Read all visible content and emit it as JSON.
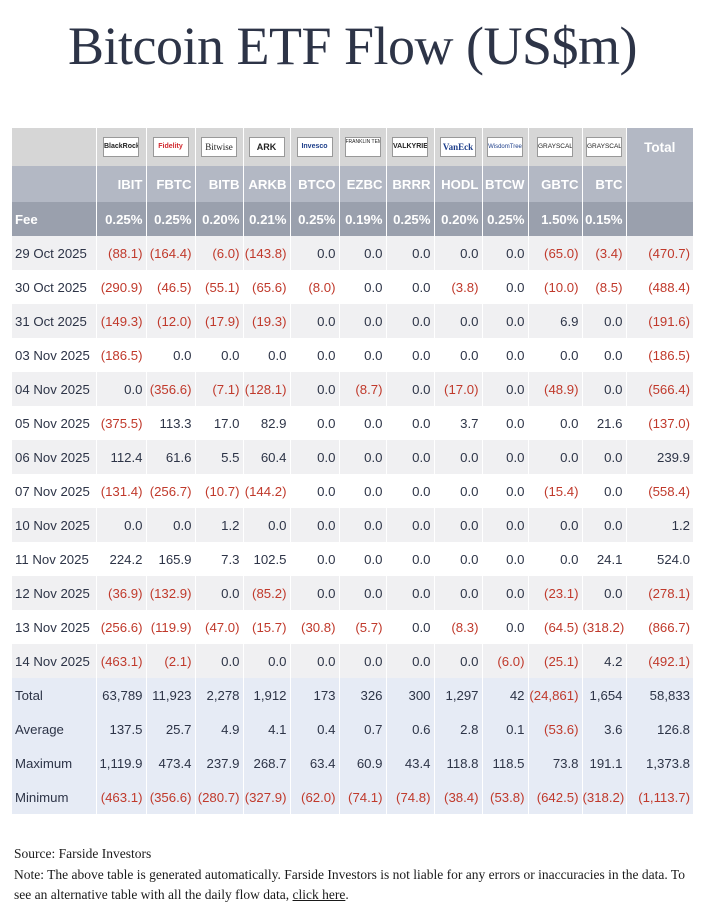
{
  "title": "Bitcoin ETF Flow (US$m)",
  "table": {
    "logos": [
      "BlackRock",
      "Fidelity",
      "Bitwise",
      "ARK",
      "Invesco",
      "FRANKLIN TEMPLETON",
      "VALKYRIE",
      "VanEck",
      "WisdomTree",
      "GRAYSCALE",
      "GRAYSCALE"
    ],
    "total_header": "Total",
    "tickers": [
      "IBIT",
      "FBTC",
      "BITB",
      "ARKB",
      "BTCO",
      "EZBC",
      "BRRR",
      "HODL",
      "BTCW",
      "GBTC",
      "BTC"
    ],
    "fee_label": "Fee",
    "fees": [
      "0.25%",
      "0.25%",
      "0.20%",
      "0.21%",
      "0.25%",
      "0.19%",
      "0.25%",
      "0.20%",
      "0.25%",
      "1.50%",
      "0.15%"
    ],
    "rows": [
      {
        "date": "29 Oct 2025",
        "values": [
          "(88.1)",
          "(164.4)",
          "(6.0)",
          "(143.8)",
          "0.0",
          "0.0",
          "0.0",
          "0.0",
          "0.0",
          "(65.0)",
          "(3.4)",
          "(470.7)"
        ]
      },
      {
        "date": "30 Oct 2025",
        "values": [
          "(290.9)",
          "(46.5)",
          "(55.1)",
          "(65.6)",
          "(8.0)",
          "0.0",
          "0.0",
          "(3.8)",
          "0.0",
          "(10.0)",
          "(8.5)",
          "(488.4)"
        ]
      },
      {
        "date": "31 Oct 2025",
        "values": [
          "(149.3)",
          "(12.0)",
          "(17.9)",
          "(19.3)",
          "0.0",
          "0.0",
          "0.0",
          "0.0",
          "0.0",
          "6.9",
          "0.0",
          "(191.6)"
        ]
      },
      {
        "date": "03 Nov 2025",
        "values": [
          "(186.5)",
          "0.0",
          "0.0",
          "0.0",
          "0.0",
          "0.0",
          "0.0",
          "0.0",
          "0.0",
          "0.0",
          "0.0",
          "(186.5)"
        ]
      },
      {
        "date": "04 Nov 2025",
        "values": [
          "0.0",
          "(356.6)",
          "(7.1)",
          "(128.1)",
          "0.0",
          "(8.7)",
          "0.0",
          "(17.0)",
          "0.0",
          "(48.9)",
          "0.0",
          "(566.4)"
        ]
      },
      {
        "date": "05 Nov 2025",
        "values": [
          "(375.5)",
          "113.3",
          "17.0",
          "82.9",
          "0.0",
          "0.0",
          "0.0",
          "3.7",
          "0.0",
          "0.0",
          "21.6",
          "(137.0)"
        ]
      },
      {
        "date": "06 Nov 2025",
        "values": [
          "112.4",
          "61.6",
          "5.5",
          "60.4",
          "0.0",
          "0.0",
          "0.0",
          "0.0",
          "0.0",
          "0.0",
          "0.0",
          "239.9"
        ]
      },
      {
        "date": "07 Nov 2025",
        "values": [
          "(131.4)",
          "(256.7)",
          "(10.7)",
          "(144.2)",
          "0.0",
          "0.0",
          "0.0",
          "0.0",
          "0.0",
          "(15.4)",
          "0.0",
          "(558.4)"
        ]
      },
      {
        "date": "10 Nov 2025",
        "values": [
          "0.0",
          "0.0",
          "1.2",
          "0.0",
          "0.0",
          "0.0",
          "0.0",
          "0.0",
          "0.0",
          "0.0",
          "0.0",
          "1.2"
        ]
      },
      {
        "date": "11 Nov 2025",
        "values": [
          "224.2",
          "165.9",
          "7.3",
          "102.5",
          "0.0",
          "0.0",
          "0.0",
          "0.0",
          "0.0",
          "0.0",
          "24.1",
          "524.0"
        ]
      },
      {
        "date": "12 Nov 2025",
        "values": [
          "(36.9)",
          "(132.9)",
          "0.0",
          "(85.2)",
          "0.0",
          "0.0",
          "0.0",
          "0.0",
          "0.0",
          "(23.1)",
          "0.0",
          "(278.1)"
        ]
      },
      {
        "date": "13 Nov 2025",
        "values": [
          "(256.6)",
          "(119.9)",
          "(47.0)",
          "(15.7)",
          "(30.8)",
          "(5.7)",
          "0.0",
          "(8.3)",
          "0.0",
          "(64.5)",
          "(318.2)",
          "(866.7)"
        ]
      },
      {
        "date": "14 Nov 2025",
        "values": [
          "(463.1)",
          "(2.1)",
          "0.0",
          "0.0",
          "0.0",
          "0.0",
          "0.0",
          "0.0",
          "(6.0)",
          "(25.1)",
          "4.2",
          "(492.1)"
        ]
      }
    ],
    "summary": [
      {
        "label": "Total",
        "values": [
          "63,789",
          "11,923",
          "2,278",
          "1,912",
          "173",
          "326",
          "300",
          "1,297",
          "42",
          "(24,861)",
          "1,654",
          "58,833"
        ]
      },
      {
        "label": "Average",
        "values": [
          "137.5",
          "25.7",
          "4.9",
          "4.1",
          "0.4",
          "0.7",
          "0.6",
          "2.8",
          "0.1",
          "(53.6)",
          "3.6",
          "126.8"
        ]
      },
      {
        "label": "Maximum",
        "values": [
          "1,119.9",
          "473.4",
          "237.9",
          "268.7",
          "63.4",
          "60.9",
          "43.4",
          "118.8",
          "118.5",
          "73.8",
          "191.1",
          "1,373.8"
        ]
      },
      {
        "label": "Minimum",
        "values": [
          "(463.1)",
          "(356.6)",
          "(280.7)",
          "(327.9)",
          "(62.0)",
          "(74.1)",
          "(74.8)",
          "(38.4)",
          "(53.8)",
          "(642.5)",
          "(318.2)",
          "(1,113.7)"
        ]
      }
    ]
  },
  "footer": {
    "source": "Source: Farside Investors",
    "note_prefix": "Note: The above table is generated automatically. Farside Investors is not liable for any errors or inaccuracies in the data. To see an alternative table with all the daily flow data, ",
    "link_text": "click here",
    "note_suffix": "."
  },
  "colors": {
    "negative": "#c0392b",
    "header_bg": "#b3b8c4",
    "fee_bg": "#9aa0ad",
    "summary_bg": "#e6ebf5",
    "title": "#2d3447"
  }
}
